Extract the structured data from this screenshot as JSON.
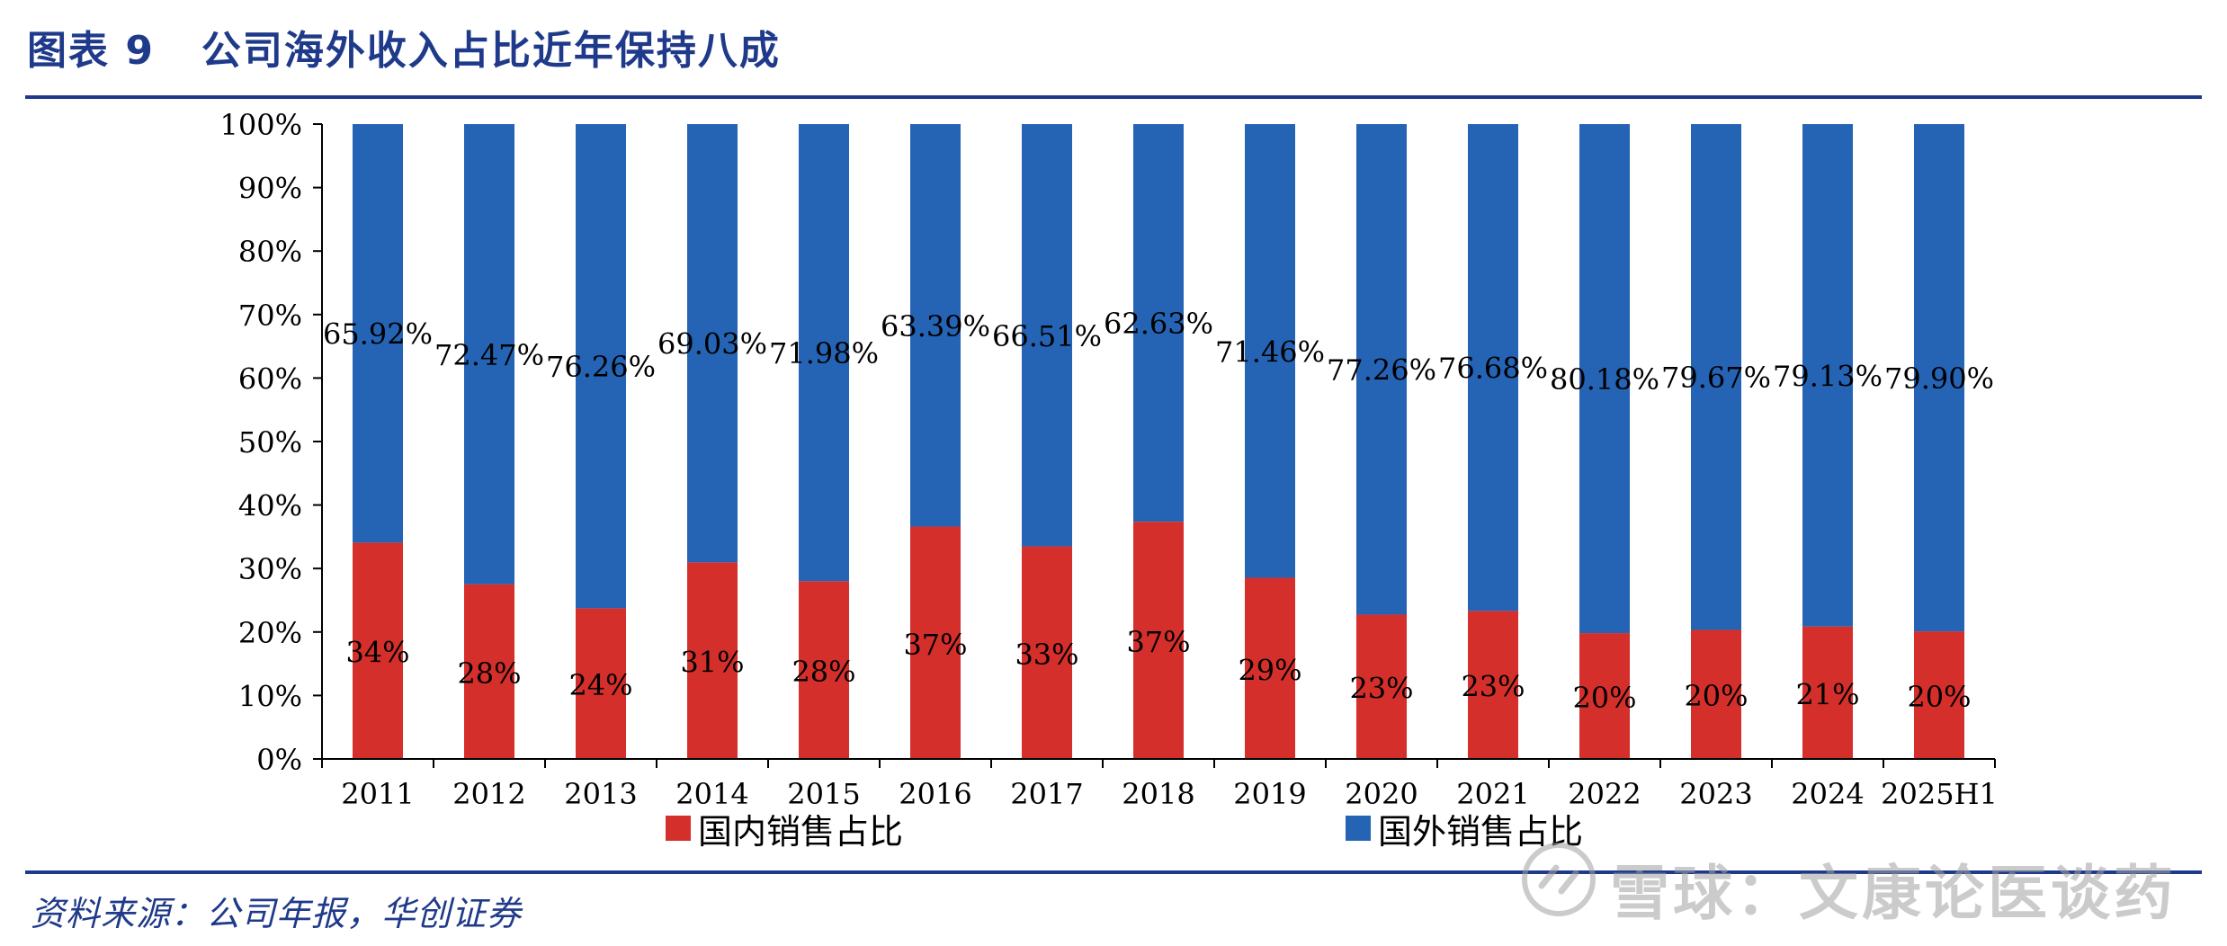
{
  "header": {
    "figure_label": "图表 9",
    "title": "公司海外收入占比近年保持八成"
  },
  "source": "资料来源：公司年报，华创证券",
  "watermark": "雪球：文康论医谈药",
  "colors": {
    "domestic": "#d42f2b",
    "overseas": "#2563b5",
    "title": "#1f3a8a",
    "axis": "#000000"
  },
  "chart_data": {
    "type": "bar",
    "stacked": true,
    "categories": [
      "2011",
      "2012",
      "2013",
      "2014",
      "2015",
      "2016",
      "2017",
      "2018",
      "2019",
      "2020",
      "2021",
      "2022",
      "2023",
      "2024",
      "2025H1"
    ],
    "series": [
      {
        "name": "国内销售占比",
        "values": [
          34.08,
          27.53,
          23.74,
          30.97,
          28.02,
          36.61,
          33.49,
          37.37,
          28.54,
          22.74,
          23.32,
          19.82,
          20.33,
          20.87,
          20.1
        ],
        "labels": [
          "34%",
          "28%",
          "24%",
          "31%",
          "28%",
          "37%",
          "33%",
          "37%",
          "29%",
          "23%",
          "23%",
          "20%",
          "20%",
          "21%",
          "20%"
        ]
      },
      {
        "name": "国外销售占比",
        "values": [
          65.92,
          72.47,
          76.26,
          69.03,
          71.98,
          63.39,
          66.51,
          62.63,
          71.46,
          77.26,
          76.68,
          80.18,
          79.67,
          79.13,
          79.9
        ],
        "labels": [
          "65.92%",
          "72.47%",
          "76.26%",
          "69.03%",
          "71.98%",
          "63.39%",
          "66.51%",
          "62.63%",
          "71.46%",
          "77.26%",
          "76.68%",
          "80.18%",
          "79.67%",
          "79.13%",
          "79.90%"
        ]
      }
    ],
    "yticks": [
      "0%",
      "10%",
      "20%",
      "30%",
      "40%",
      "50%",
      "60%",
      "70%",
      "80%",
      "90%",
      "100%"
    ],
    "ylim": [
      0,
      100
    ],
    "grid": false,
    "legend_position": "bottom"
  }
}
